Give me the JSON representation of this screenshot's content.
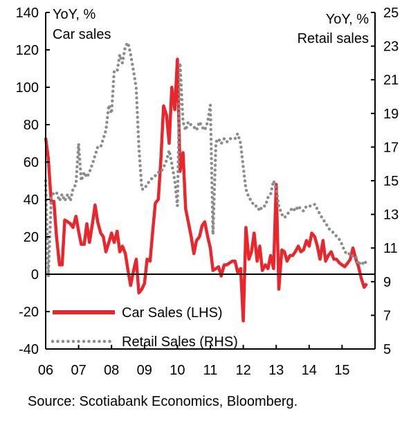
{
  "chart_data": {
    "type": "line",
    "left_axis_title_line1": "YoY, %",
    "left_axis_title_line2": "Car sales",
    "right_axis_title_line1": "YoY, %",
    "right_axis_title_line2": "Retail sales",
    "x_tick_labels": [
      "06",
      "07",
      "08",
      "09",
      "10",
      "11",
      "12",
      "13",
      "14",
      "15"
    ],
    "x_range": [
      2006,
      2015.75
    ],
    "y_left": {
      "min": -40,
      "max": 140,
      "ticks": [
        -40,
        -20,
        0,
        20,
        40,
        60,
        80,
        100,
        120,
        140
      ]
    },
    "y_right": {
      "min": 5,
      "max": 25,
      "ticks": [
        5,
        7,
        9,
        11,
        13,
        15,
        17,
        19,
        21,
        23,
        25
      ]
    },
    "grid": false,
    "legend_position": "bottom-left",
    "series": [
      {
        "name": "Car Sales (LHS)",
        "axis": "left",
        "color": "#e8262b",
        "style": "solid",
        "points": [
          [
            2006.0,
            73
          ],
          [
            2006.08,
            62
          ],
          [
            2006.17,
            38
          ],
          [
            2006.25,
            39
          ],
          [
            2006.33,
            20
          ],
          [
            2006.42,
            5
          ],
          [
            2006.5,
            5
          ],
          [
            2006.58,
            29
          ],
          [
            2006.67,
            28
          ],
          [
            2006.75,
            27
          ],
          [
            2006.83,
            25
          ],
          [
            2006.92,
            31
          ],
          [
            2007.0,
            23
          ],
          [
            2007.08,
            16
          ],
          [
            2007.17,
            16
          ],
          [
            2007.25,
            27
          ],
          [
            2007.33,
            17
          ],
          [
            2007.42,
            27
          ],
          [
            2007.5,
            37
          ],
          [
            2007.58,
            28
          ],
          [
            2007.67,
            22
          ],
          [
            2007.75,
            20
          ],
          [
            2007.83,
            12
          ],
          [
            2007.92,
            17
          ],
          [
            2008.0,
            22
          ],
          [
            2008.08,
            17
          ],
          [
            2008.17,
            23
          ],
          [
            2008.25,
            12
          ],
          [
            2008.33,
            15
          ],
          [
            2008.42,
            11
          ],
          [
            2008.5,
            2
          ],
          [
            2008.58,
            -6
          ],
          [
            2008.67,
            2
          ],
          [
            2008.75,
            8
          ],
          [
            2008.83,
            -10
          ],
          [
            2008.92,
            -8
          ],
          [
            2009.0,
            -5
          ],
          [
            2009.08,
            8
          ],
          [
            2009.17,
            7
          ],
          [
            2009.25,
            23
          ],
          [
            2009.33,
            38
          ],
          [
            2009.42,
            40
          ],
          [
            2009.5,
            62
          ],
          [
            2009.58,
            90
          ],
          [
            2009.67,
            85
          ],
          [
            2009.75,
            70
          ],
          [
            2009.83,
            100
          ],
          [
            2009.92,
            88
          ],
          [
            2010.0,
            115
          ],
          [
            2010.08,
            55
          ],
          [
            2010.17,
            65
          ],
          [
            2010.25,
            35
          ],
          [
            2010.33,
            28
          ],
          [
            2010.42,
            20
          ],
          [
            2010.5,
            11
          ],
          [
            2010.58,
            18
          ],
          [
            2010.67,
            20
          ],
          [
            2010.75,
            26
          ],
          [
            2010.83,
            28
          ],
          [
            2010.92,
            20
          ],
          [
            2011.0,
            14
          ],
          [
            2011.08,
            2
          ],
          [
            2011.17,
            3
          ],
          [
            2011.25,
            4
          ],
          [
            2011.33,
            -1
          ],
          [
            2011.42,
            5
          ],
          [
            2011.5,
            5
          ],
          [
            2011.58,
            6
          ],
          [
            2011.67,
            7
          ],
          [
            2011.75,
            7
          ],
          [
            2011.83,
            1
          ],
          [
            2011.92,
            3
          ],
          [
            2012.0,
            -25
          ],
          [
            2012.08,
            25
          ],
          [
            2012.17,
            8
          ],
          [
            2012.25,
            12
          ],
          [
            2012.33,
            22
          ],
          [
            2012.42,
            7
          ],
          [
            2012.5,
            15
          ],
          [
            2012.58,
            2
          ],
          [
            2012.67,
            5
          ],
          [
            2012.75,
            3
          ],
          [
            2012.83,
            10
          ],
          [
            2012.92,
            3
          ],
          [
            2013.0,
            48
          ],
          [
            2013.08,
            -8
          ],
          [
            2013.17,
            13
          ],
          [
            2013.25,
            12
          ],
          [
            2013.33,
            7
          ],
          [
            2013.42,
            10
          ],
          [
            2013.5,
            10
          ],
          [
            2013.58,
            12
          ],
          [
            2013.67,
            15
          ],
          [
            2013.75,
            12
          ],
          [
            2013.83,
            13
          ],
          [
            2013.92,
            18
          ],
          [
            2014.0,
            15
          ],
          [
            2014.08,
            22
          ],
          [
            2014.17,
            20
          ],
          [
            2014.25,
            15
          ],
          [
            2014.33,
            8
          ],
          [
            2014.42,
            18
          ],
          [
            2014.5,
            7
          ],
          [
            2014.58,
            10
          ],
          [
            2014.67,
            12
          ],
          [
            2014.75,
            8
          ],
          [
            2014.83,
            8
          ],
          [
            2014.92,
            6
          ],
          [
            2015.0,
            5
          ],
          [
            2015.08,
            4
          ],
          [
            2015.17,
            6
          ],
          [
            2015.25,
            8
          ],
          [
            2015.33,
            14
          ],
          [
            2015.42,
            8
          ],
          [
            2015.5,
            4
          ],
          [
            2015.58,
            -2
          ],
          [
            2015.67,
            -7
          ],
          [
            2015.75,
            -5
          ]
        ]
      },
      {
        "name": "Retail Sales (RHS)",
        "axis": "right",
        "color": "#8c8c8c",
        "style": "dotted",
        "points": [
          [
            2006.0,
            15.0
          ],
          [
            2006.08,
            9.3
          ],
          [
            2006.17,
            14.0
          ],
          [
            2006.25,
            14.3
          ],
          [
            2006.33,
            14.3
          ],
          [
            2006.42,
            13.8
          ],
          [
            2006.5,
            14.2
          ],
          [
            2006.58,
            13.8
          ],
          [
            2006.67,
            14.2
          ],
          [
            2006.75,
            13.8
          ],
          [
            2006.83,
            14.5
          ],
          [
            2006.92,
            14.8
          ],
          [
            2007.0,
            17.2
          ],
          [
            2007.08,
            15.0
          ],
          [
            2007.17,
            15.5
          ],
          [
            2007.25,
            15.2
          ],
          [
            2007.33,
            15.5
          ],
          [
            2007.42,
            16.0
          ],
          [
            2007.5,
            16.5
          ],
          [
            2007.58,
            17.0
          ],
          [
            2007.67,
            17.0
          ],
          [
            2007.75,
            17.5
          ],
          [
            2007.83,
            18.0
          ],
          [
            2007.92,
            19.5
          ],
          [
            2008.0,
            19.0
          ],
          [
            2008.08,
            21.5
          ],
          [
            2008.17,
            21.5
          ],
          [
            2008.25,
            22.5
          ],
          [
            2008.33,
            22.0
          ],
          [
            2008.42,
            23.0
          ],
          [
            2008.5,
            23.2
          ],
          [
            2008.58,
            22.5
          ],
          [
            2008.67,
            21.5
          ],
          [
            2008.75,
            20.5
          ],
          [
            2008.83,
            17.0
          ],
          [
            2008.92,
            14.5
          ],
          [
            2009.0,
            14.5
          ],
          [
            2009.08,
            14.8
          ],
          [
            2009.17,
            15.0
          ],
          [
            2009.25,
            15.2
          ],
          [
            2009.33,
            15.3
          ],
          [
            2009.42,
            15.5
          ],
          [
            2009.5,
            15.5
          ],
          [
            2009.58,
            15.8
          ],
          [
            2009.67,
            16.2
          ],
          [
            2009.75,
            16.8
          ],
          [
            2009.83,
            16.0
          ],
          [
            2009.92,
            15.0
          ],
          [
            2010.0,
            13.5
          ],
          [
            2010.08,
            22.0
          ],
          [
            2010.17,
            18.5
          ],
          [
            2010.25,
            18.0
          ],
          [
            2010.33,
            18.5
          ],
          [
            2010.42,
            18.3
          ],
          [
            2010.5,
            18.2
          ],
          [
            2010.58,
            18.0
          ],
          [
            2010.67,
            18.5
          ],
          [
            2010.75,
            18.2
          ],
          [
            2010.83,
            18.0
          ],
          [
            2010.92,
            18.5
          ],
          [
            2011.0,
            19.5
          ],
          [
            2011.08,
            11.8
          ],
          [
            2011.17,
            17.3
          ],
          [
            2011.25,
            17.5
          ],
          [
            2011.33,
            17.2
          ],
          [
            2011.42,
            17.5
          ],
          [
            2011.5,
            17.3
          ],
          [
            2011.58,
            17.5
          ],
          [
            2011.67,
            17.5
          ],
          [
            2011.75,
            17.5
          ],
          [
            2011.83,
            17.8
          ],
          [
            2011.92,
            17.2
          ],
          [
            2012.0,
            15.8
          ],
          [
            2012.08,
            14.5
          ],
          [
            2012.17,
            14.0
          ],
          [
            2012.25,
            13.8
          ],
          [
            2012.33,
            13.5
          ],
          [
            2012.42,
            13.5
          ],
          [
            2012.5,
            13.2
          ],
          [
            2012.58,
            13.5
          ],
          [
            2012.67,
            13.5
          ],
          [
            2012.75,
            14.0
          ],
          [
            2012.83,
            14.2
          ],
          [
            2012.92,
            15.0
          ],
          [
            2013.0,
            14.5
          ],
          [
            2013.08,
            13.5
          ],
          [
            2013.17,
            13.0
          ],
          [
            2013.25,
            12.8
          ],
          [
            2013.33,
            13.0
          ],
          [
            2013.42,
            13.2
          ],
          [
            2013.5,
            13.4
          ],
          [
            2013.58,
            13.2
          ],
          [
            2013.67,
            13.5
          ],
          [
            2013.75,
            13.3
          ],
          [
            2013.83,
            13.2
          ],
          [
            2013.92,
            13.5
          ],
          [
            2014.0,
            13.5
          ],
          [
            2014.08,
            13.5
          ],
          [
            2014.17,
            13.6
          ],
          [
            2014.25,
            13.3
          ],
          [
            2014.33,
            13.0
          ],
          [
            2014.42,
            12.7
          ],
          [
            2014.5,
            12.5
          ],
          [
            2014.58,
            12.2
          ],
          [
            2014.67,
            12.0
          ],
          [
            2014.75,
            11.9
          ],
          [
            2014.83,
            11.7
          ],
          [
            2014.92,
            11.5
          ],
          [
            2015.0,
            11.2
          ],
          [
            2015.08,
            10.8
          ],
          [
            2015.17,
            10.6
          ],
          [
            2015.25,
            10.7
          ],
          [
            2015.33,
            10.5
          ],
          [
            2015.42,
            10.5
          ],
          [
            2015.5,
            10.0
          ],
          [
            2015.58,
            10.2
          ],
          [
            2015.67,
            10.0
          ],
          [
            2015.75,
            10.3
          ]
        ]
      }
    ]
  },
  "legend": {
    "car_label": "Car Sales (LHS)",
    "retail_label": "Retail Sales (RHS)"
  },
  "source": "Source: Scotiabank Economics, Bloomberg."
}
